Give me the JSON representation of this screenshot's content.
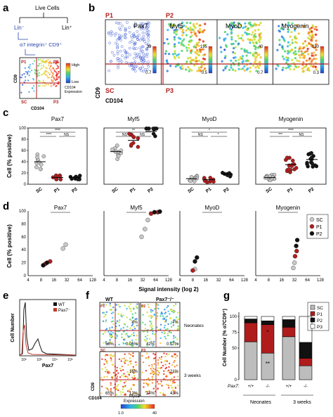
{
  "panel_letters": [
    "a",
    "b",
    "c",
    "d",
    "e",
    "f",
    "g"
  ],
  "panel_a": {
    "tree_root": "Live Cells",
    "lin_neg": "Lin⁻",
    "lin_pos": "Lin⁺",
    "gate": "α7 integrin⁺ CD9⁺",
    "quadrants": [
      "P1",
      "P2",
      "SC",
      "P3"
    ],
    "y_axis": "CD9",
    "x_axis": "CD104",
    "legend_high": "High",
    "legend_low": "Low",
    "legend_caption_1": "CD104",
    "legend_caption_2": "Expression"
  },
  "panel_b": {
    "quadrants": [
      "P1",
      "P2",
      "SC",
      "P3"
    ],
    "y_axis": "CD9",
    "x_axis": "CD104",
    "plots": [
      {
        "title": "Pax7",
        "scale_max": "39",
        "scale_min": "0.7"
      },
      {
        "title": "Myf5",
        "scale_max": "195",
        "scale_min": "0.5"
      },
      {
        "title": "MyoD",
        "scale_max": "40",
        "scale_min": "0.7"
      },
      {
        "title": "Myogenin",
        "scale_max": "130",
        "scale_min": "0.3"
      }
    ]
  },
  "panel_c": {
    "ylabel": "Cell (% positive)",
    "yticks": [
      "100",
      "80",
      "60",
      "40",
      "20",
      "0"
    ],
    "categories": [
      "SC",
      "P1",
      "P2"
    ],
    "plots": [
      {
        "title": "Pax7",
        "sig_top": "****",
        "sig_left": "****",
        "sig_right": "NS",
        "mean": [
          40,
          12,
          12
        ]
      },
      {
        "title": "Myf5",
        "sig_top": "**",
        "sig_left": "NS",
        "sig_right": "NS",
        "mean": [
          58,
          78,
          94
        ]
      },
      {
        "title": "MyoD",
        "sig_top": "*",
        "sig_left": "NS",
        "sig_right": "*",
        "mean": [
          10,
          8,
          18
        ]
      },
      {
        "title": "Myogenin",
        "sig_top": "****",
        "sig_left": "***",
        "sig_right": "NS",
        "mean": [
          12,
          35,
          44
        ]
      }
    ]
  },
  "panel_d": {
    "ylabel": "Cell (% positive)",
    "xlabel": "Signal intensity (log 2)",
    "yticks": [
      "100",
      "80",
      "60",
      "40",
      "20",
      "0"
    ],
    "xticks": [
      "4",
      "8",
      "16",
      "32",
      "64",
      "128"
    ],
    "titles": [
      "Pax7",
      "Myf5",
      "MyoD",
      "Myogenin"
    ],
    "legend": [
      {
        "label": "SC",
        "color": "#c8c8c8"
      },
      {
        "label": "P1",
        "color": "#b01c1c"
      },
      {
        "label": "P2",
        "color": "#111111"
      }
    ],
    "chart_data": [
      {
        "type": "scatter",
        "title": "Pax7",
        "series": [
          {
            "name": "SC",
            "points": [
              [
                26,
                42
              ],
              [
                30,
                48
              ]
            ]
          },
          {
            "name": "P1",
            "points": [
              [
                10,
                18
              ],
              [
                13,
                22
              ]
            ]
          },
          {
            "name": "P2",
            "points": [
              [
                9,
                16
              ],
              [
                11,
                20
              ]
            ]
          }
        ]
      },
      {
        "type": "scatter",
        "title": "Myf5",
        "series": [
          {
            "name": "SC",
            "points": [
              [
                30,
                60
              ],
              [
                36,
                72
              ],
              [
                42,
                86
              ]
            ]
          },
          {
            "name": "P1",
            "points": [
              [
                50,
                96
              ],
              [
                72,
                98
              ]
            ]
          },
          {
            "name": "P2",
            "points": [
              [
                60,
                98
              ],
              [
                80,
                99
              ]
            ]
          }
        ]
      },
      {
        "type": "scatter",
        "title": "MyoD",
        "series": [
          {
            "name": "SC",
            "points": [
              [
                9,
                10
              ]
            ]
          },
          {
            "name": "P1",
            "points": [
              [
                8,
                8
              ]
            ]
          },
          {
            "name": "P2",
            "points": [
              [
                9,
                22
              ],
              [
                10,
                28
              ]
            ]
          }
        ]
      },
      {
        "type": "scatter",
        "title": "Myogenin",
        "series": [
          {
            "name": "SC",
            "points": [
              [
                30,
                12
              ],
              [
                32,
                20
              ]
            ]
          },
          {
            "name": "P1",
            "points": [
              [
                33,
                30
              ],
              [
                36,
                38
              ]
            ]
          },
          {
            "name": "P2",
            "points": [
              [
                35,
                46
              ],
              [
                37,
                55
              ]
            ]
          }
        ]
      }
    ]
  },
  "panel_e": {
    "ylabel": "Cell Number",
    "xlabel": "Pax7",
    "legend": [
      {
        "label": "WT",
        "color": "#111111"
      },
      {
        "label": "Pax7⁻",
        "color": "#c0392b"
      }
    ],
    "xticks": [
      "10²",
      "10³",
      "10⁴",
      "10⁵"
    ]
  },
  "panel_f": {
    "col_wt": "WT",
    "col_ko": "Pax7⁻/⁻",
    "row_neonates": "Neonates",
    "row_3weeks": "3 weeks",
    "quadrants": [
      "P1",
      "P2",
      "SC",
      "P3"
    ],
    "y_axis": "CD9",
    "x_axis": "CD104",
    "colorbar_title_1": "MyoD",
    "colorbar_title_2": "Expression",
    "colorbar_min": "1.0",
    "colorbar_max": "40",
    "plots": [
      {
        "tr": "4%",
        "bl": "56%",
        "br": "0.05%"
      },
      {
        "tr": "7%",
        "bl": "42%",
        "br": "0.07%"
      },
      {
        "tr": "16%",
        "bl": "65%",
        "br": "12%"
      },
      {
        "tr": "21%",
        "bl": "24%",
        "br": "43%"
      }
    ]
  },
  "panel_g": {
    "ylabel": "Cell Number (% α7CD9⁺)",
    "yticks": [
      "100",
      "75",
      "50",
      "0"
    ],
    "genotype_label": "Pax7:",
    "genotypes": [
      "+/+",
      "-/-",
      "+/+",
      "-/-"
    ],
    "groups": [
      "Neonates",
      "3 weeks"
    ],
    "annotations": [
      "*",
      "**"
    ],
    "legend": [
      {
        "label": "SC",
        "color": "#bdbdbd"
      },
      {
        "label": "P1",
        "color": "#b01c1c"
      },
      {
        "label": "P2",
        "color": "#111111"
      },
      {
        "label": "P3",
        "color": "#ffffff"
      }
    ],
    "chart_data": {
      "type": "bar",
      "categories": [
        "+/+ Neonates",
        "-/- Neonates",
        "+/+ 3 weeks",
        "-/- 3 weeks"
      ],
      "series": [
        {
          "name": "SC",
          "values": [
            60,
            42,
            68,
            22
          ]
        },
        {
          "name": "P1",
          "values": [
            30,
            45,
            15,
            12
          ]
        },
        {
          "name": "P2",
          "values": [
            6,
            6,
            12,
            25
          ]
        },
        {
          "name": "P3",
          "values": [
            4,
            7,
            5,
            41
          ]
        }
      ],
      "ylim": [
        0,
        100
      ]
    }
  }
}
